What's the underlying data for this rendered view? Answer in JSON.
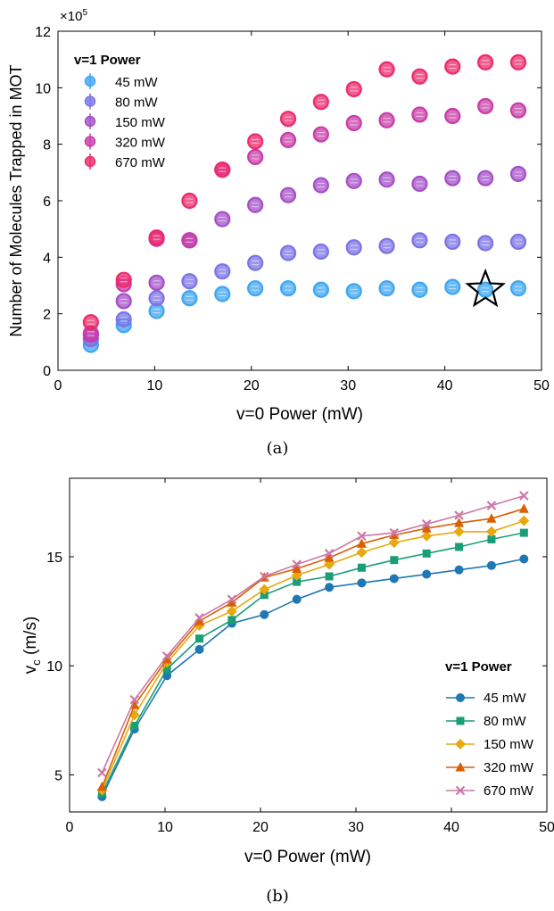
{
  "chart_data": [
    {
      "type": "scatter",
      "panel_label": "(a)",
      "xlabel": "v=0 Power (mW)",
      "ylabel": "Number of Molecules Trapped in MOT",
      "y_multiplier": "×10",
      "y_exponent": "5",
      "xlim": [
        0,
        50
      ],
      "ylim": [
        0,
        12
      ],
      "x_ticks": [
        "0",
        "10",
        "20",
        "30",
        "40",
        "50"
      ],
      "y_ticks": [
        "0",
        "2",
        "4",
        "6",
        "8",
        "10",
        "12"
      ],
      "grid": false,
      "legend_title": "v=1 Power",
      "legend_position": "top-left",
      "x": [
        3.4,
        6.8,
        10.2,
        13.6,
        17.0,
        20.4,
        23.8,
        27.2,
        30.6,
        34.0,
        37.4,
        40.8,
        44.2,
        47.6
      ],
      "series": [
        {
          "name": "45 mW",
          "color": "#3ea6f2",
          "values": [
            0.9,
            1.6,
            2.1,
            2.55,
            2.7,
            2.9,
            2.9,
            2.85,
            2.8,
            2.9,
            2.85,
            2.95,
            2.85,
            2.9
          ]
        },
        {
          "name": "80 mW",
          "color": "#7b73e6",
          "values": [
            1.1,
            1.8,
            2.55,
            3.15,
            3.5,
            3.8,
            4.15,
            4.2,
            4.35,
            4.4,
            4.6,
            4.55,
            4.5,
            4.55
          ]
        },
        {
          "name": "150 mW",
          "color": "#a44fc8",
          "values": [
            1.25,
            2.45,
            3.1,
            4.6,
            5.35,
            5.85,
            6.2,
            6.55,
            6.7,
            6.75,
            6.6,
            6.8,
            6.8,
            6.95
          ]
        },
        {
          "name": "320 mW",
          "color": "#c83ca8",
          "values": [
            1.3,
            3.05,
            4.65,
            4.6,
            7.1,
            7.55,
            8.15,
            8.35,
            8.75,
            8.85,
            9.05,
            9.0,
            9.35,
            9.2
          ]
        },
        {
          "name": "670 mW",
          "color": "#ec2a6c",
          "values": [
            1.7,
            3.2,
            4.7,
            6.0,
            7.1,
            8.1,
            8.9,
            9.5,
            9.95,
            10.65,
            10.4,
            10.75,
            10.9,
            10.9
          ]
        }
      ],
      "annotations": [
        {
          "shape": "star",
          "x": 44.2,
          "y": 2.85
        }
      ]
    },
    {
      "type": "line",
      "panel_label": "(b)",
      "xlabel": "v=0 Power (mW)",
      "ylabel": "v",
      "ylabel_subscript": "c",
      "ylabel_unit": " (m/s)",
      "xlim": [
        0,
        50
      ],
      "ylim": [
        3.3,
        18.6
      ],
      "x_ticks": [
        "0",
        "10",
        "20",
        "30",
        "40",
        "50"
      ],
      "y_ticks": [
        "5",
        "10",
        "15"
      ],
      "grid": false,
      "legend_title": "v=1 Power",
      "legend_position": "bottom-right",
      "x": [
        3.4,
        6.8,
        10.2,
        13.6,
        17.0,
        20.4,
        23.8,
        27.2,
        30.6,
        34.0,
        37.4,
        40.8,
        44.2,
        47.6
      ],
      "series": [
        {
          "name": "45 mW",
          "color": "#1f77b4",
          "marker": "circle",
          "values": [
            4.0,
            7.1,
            9.55,
            10.75,
            11.95,
            12.35,
            13.05,
            13.6,
            13.8,
            14.0,
            14.2,
            14.4,
            14.6,
            14.9
          ]
        },
        {
          "name": "80 mW",
          "color": "#1a9e77",
          "marker": "square",
          "values": [
            4.15,
            7.25,
            9.85,
            11.25,
            12.1,
            13.25,
            13.85,
            14.1,
            14.5,
            14.85,
            15.15,
            15.45,
            15.8,
            16.1
          ]
        },
        {
          "name": "150 mW",
          "color": "#e8a80f",
          "marker": "diamond",
          "values": [
            4.3,
            7.75,
            10.15,
            11.85,
            12.5,
            13.5,
            14.15,
            14.65,
            15.2,
            15.65,
            15.95,
            16.15,
            16.15,
            16.65
          ]
        },
        {
          "name": "320 mW",
          "color": "#d95f02",
          "marker": "triangle",
          "values": [
            4.45,
            8.2,
            10.3,
            12.05,
            12.9,
            14.05,
            14.45,
            14.95,
            15.6,
            16.0,
            16.3,
            16.55,
            16.75,
            17.2
          ]
        },
        {
          "name": "670 mW",
          "color": "#cc79a7",
          "marker": "x",
          "values": [
            5.1,
            8.45,
            10.45,
            12.2,
            13.05,
            14.1,
            14.65,
            15.15,
            15.95,
            16.1,
            16.5,
            16.9,
            17.35,
            17.8
          ]
        }
      ]
    }
  ]
}
